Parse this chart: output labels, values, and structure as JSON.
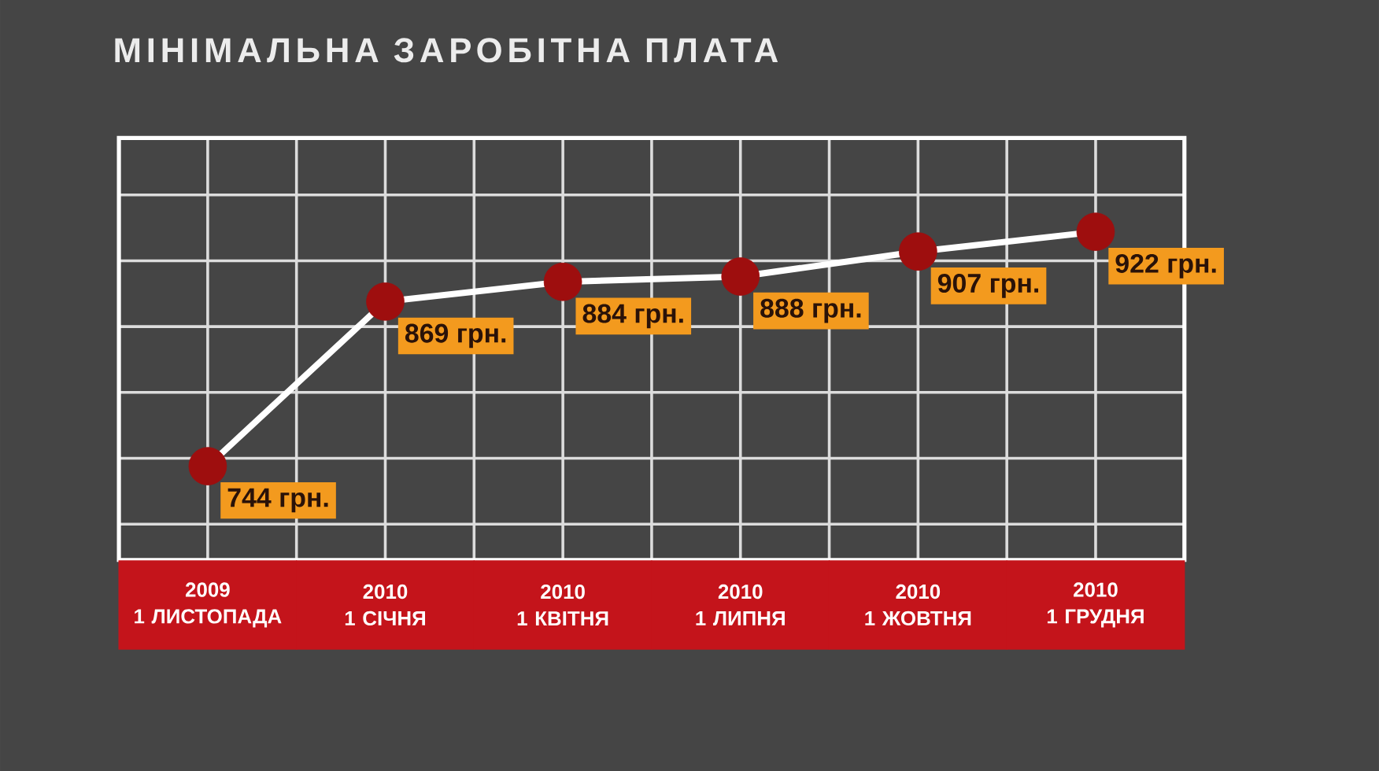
{
  "chart_data": {
    "type": "line",
    "title": "МІНІМАЛЬНА ЗАРОБІТНА ПЛАТА",
    "categories": [
      "2009\n1 ЛИСТОПАДА",
      "2010\n1 СІЧНЯ",
      "2010\n1 КВІТНЯ",
      "2010\n1 ЛИПНЯ",
      "2010\n1 ЖОВТНЯ",
      "2010\n1 ГРУДНЯ"
    ],
    "series": [
      {
        "color": "#ffffff",
        "colors": [
          "#9e0e0e",
          "#9e0e0e",
          "#9e0e0e",
          "#9e0e0e",
          "#9e0e0e",
          "#9e0e0e"
        ],
        "values": [
          744,
          869,
          884,
          888,
          907,
          922
        ],
        "value_labels": [
          "744 грн.",
          "869 грн.",
          "884 грн.",
          "888 грн.",
          "907 грн.",
          "922 грн."
        ]
      }
    ],
    "marker": "circle",
    "line_style": "solid",
    "grid": true,
    "tick_labels": "x"
  }
}
